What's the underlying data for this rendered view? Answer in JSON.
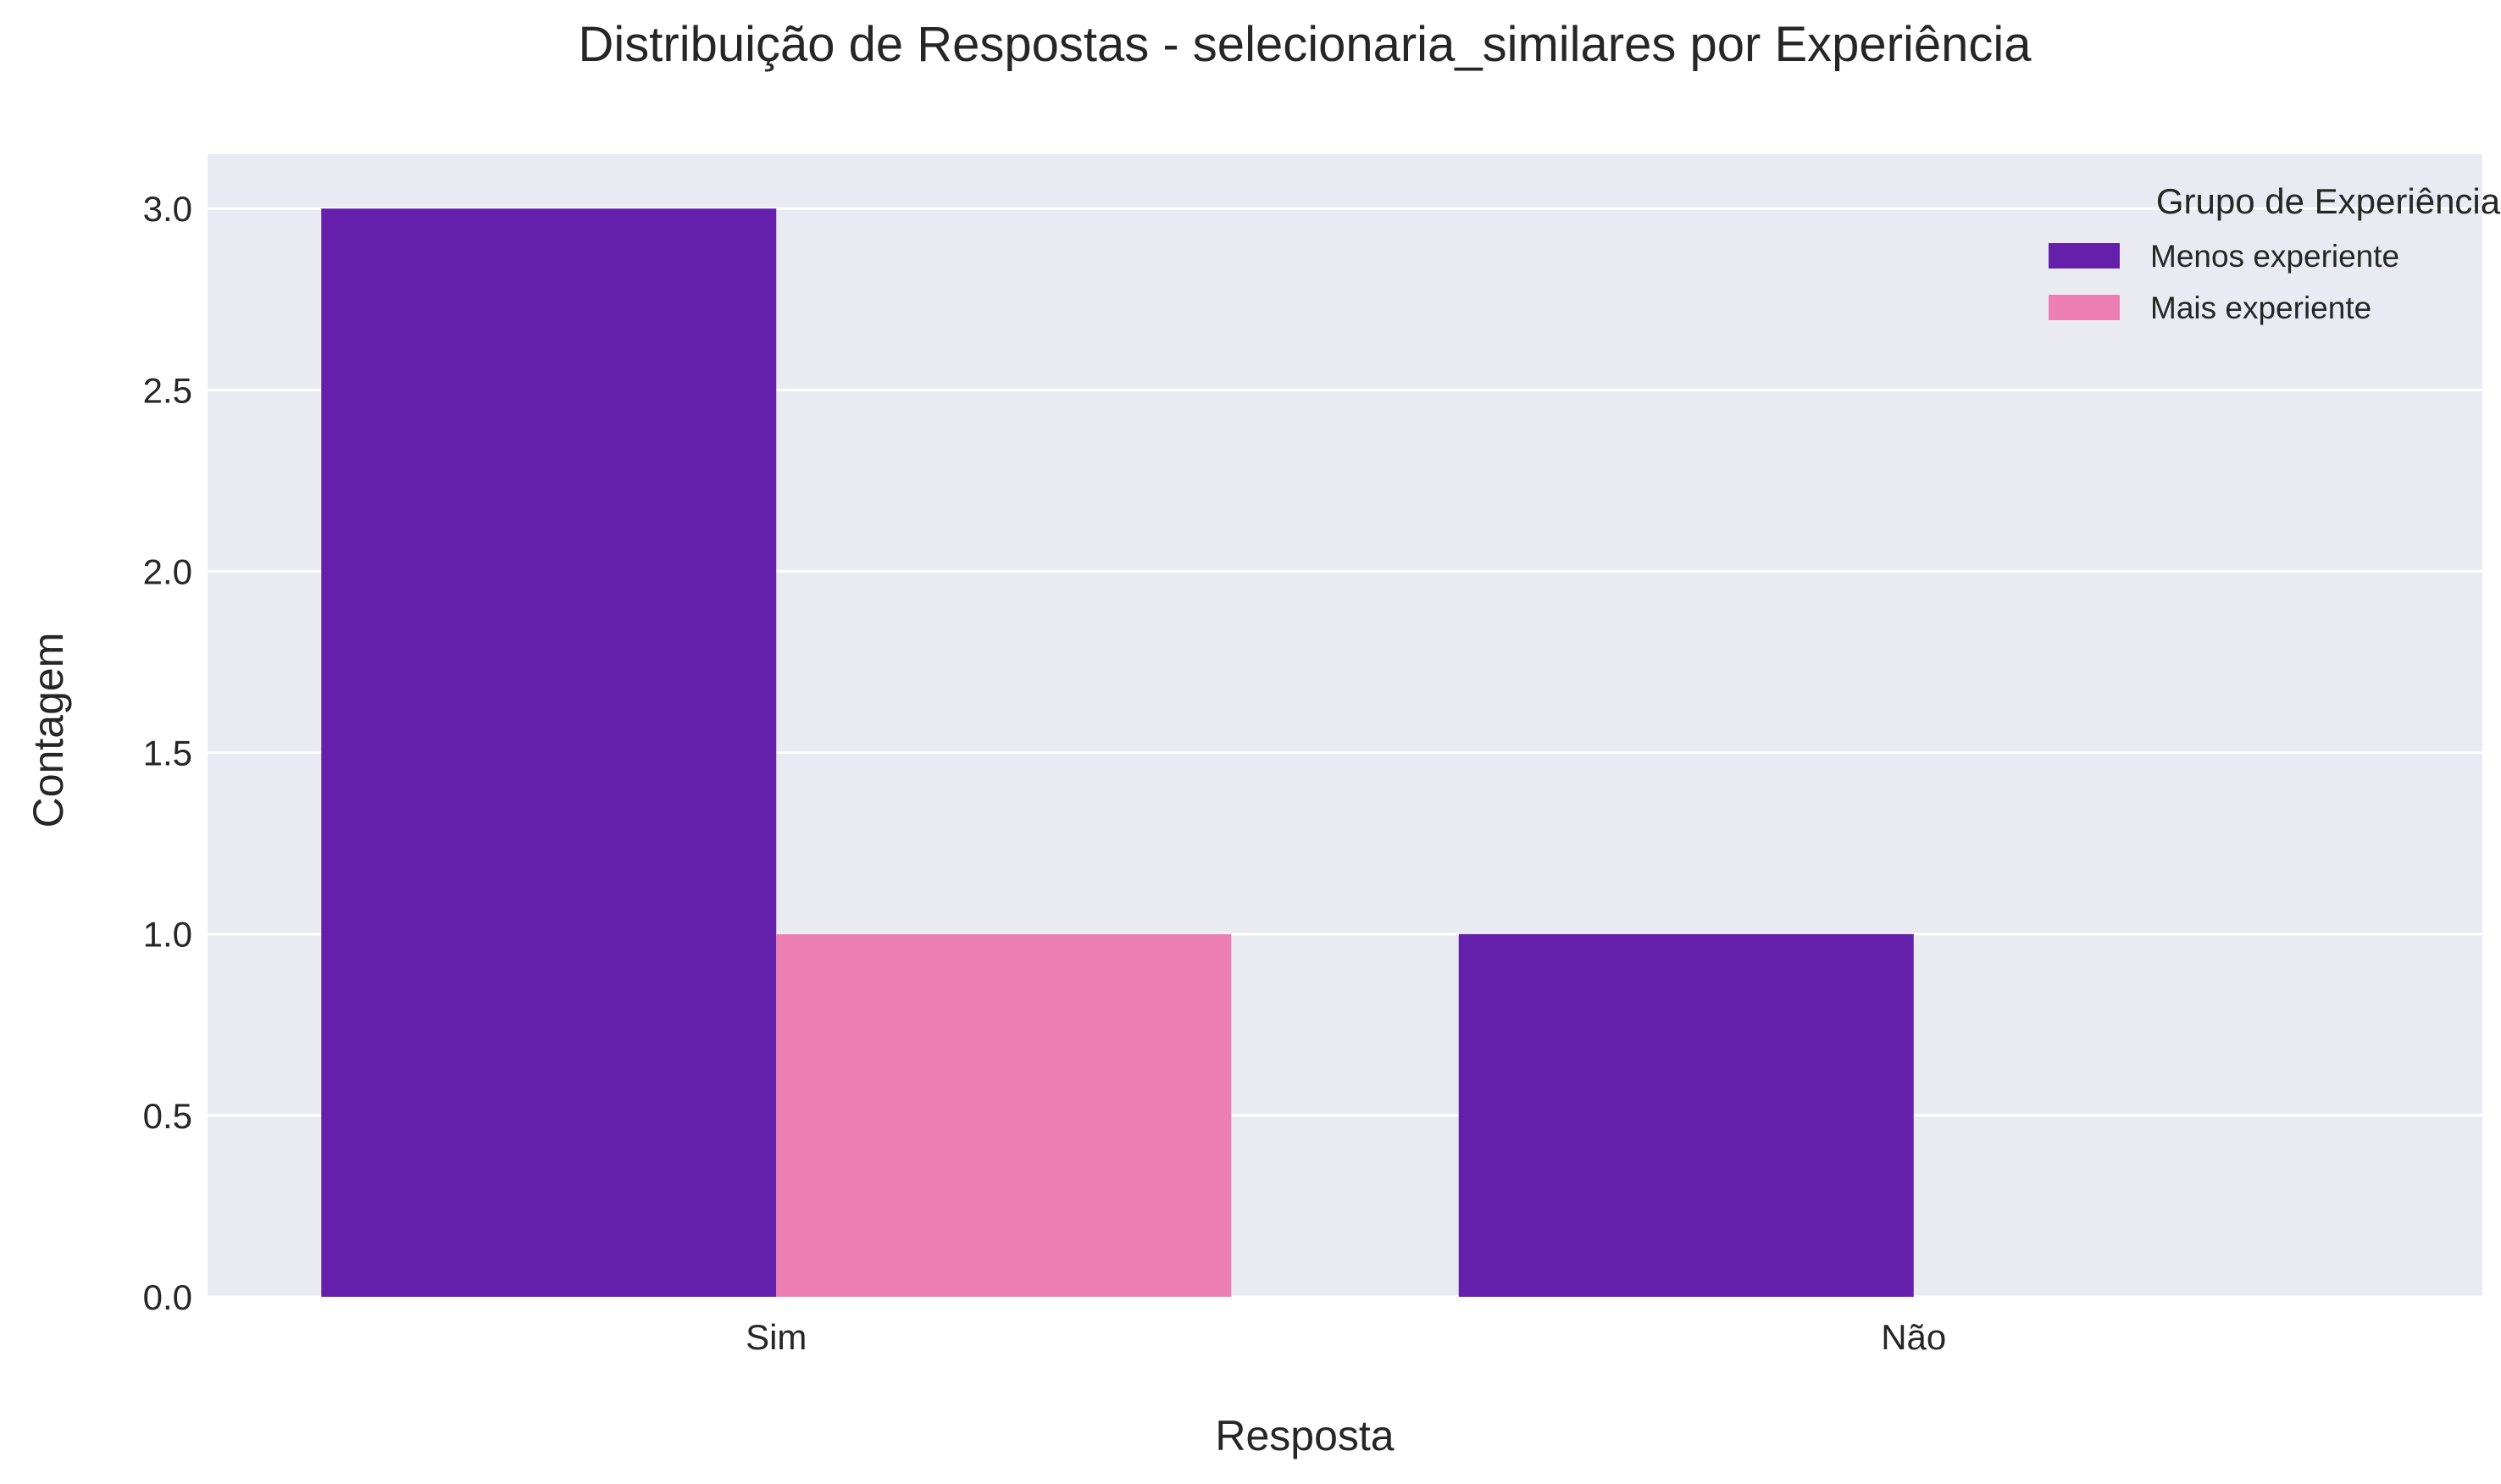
{
  "chart_data": {
    "type": "bar",
    "title": "Distribuição de Respostas - selecionaria_similares por Experiência",
    "xlabel": "Resposta",
    "ylabel": "Contagem",
    "categories": [
      "Sim",
      "Não"
    ],
    "series": [
      {
        "name": "Menos experiente",
        "values": [
          3,
          1
        ],
        "color": "#6420AA"
      },
      {
        "name": "Mais experiente",
        "values": [
          1,
          0
        ],
        "color": "#ED7EB4"
      }
    ],
    "ylim": [
      0,
      3.15
    ],
    "yticks": [
      "0.0",
      "0.5",
      "1.0",
      "1.5",
      "2.0",
      "2.5",
      "3.0"
    ],
    "legend": {
      "title": "Grupo de Experiência",
      "position": "top-right"
    },
    "grid": true,
    "background": "#EAEAF2"
  }
}
